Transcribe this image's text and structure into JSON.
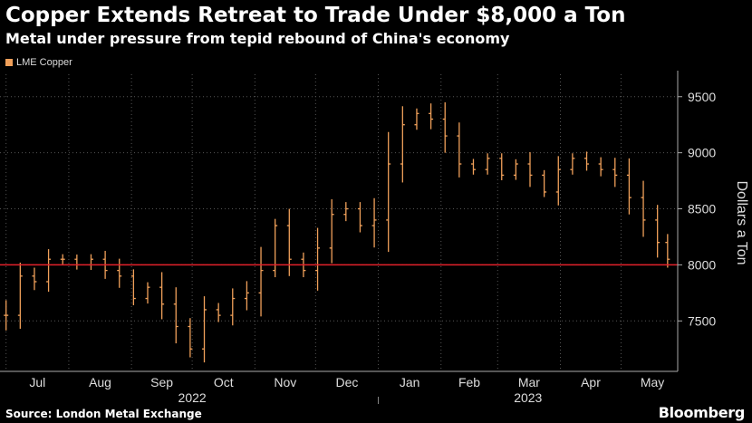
{
  "chart_data": {
    "type": "bar",
    "subtype": "ohlc",
    "title": "Copper Extends Retreat to Trade Under $8,000 a Ton",
    "subtitle": "Metal under pressure from tepid rebound of China's economy",
    "ylabel": "Dollars a Ton",
    "ylim": [
      7050,
      9700
    ],
    "yticks": [
      7500,
      8000,
      8500,
      9000,
      9500
    ],
    "reference_line": {
      "value": 8000,
      "color": "#e3212b"
    },
    "x_month_labels": [
      "Jul",
      "Aug",
      "Sep",
      "Oct",
      "Nov",
      "Dec",
      "Jan",
      "Feb",
      "Mar",
      "Apr",
      "May"
    ],
    "x_year_labels": [
      "2022",
      "2023"
    ],
    "grid": true,
    "legend_position": "top-left",
    "series": [
      {
        "name": "LME Copper",
        "color": "#f0a05a",
        "dates": [
          "2022-07-01",
          "2022-07-08",
          "2022-07-15",
          "2022-07-22",
          "2022-07-29",
          "2022-08-05",
          "2022-08-12",
          "2022-08-19",
          "2022-08-26",
          "2022-09-02",
          "2022-09-09",
          "2022-09-16",
          "2022-09-23",
          "2022-09-30",
          "2022-10-07",
          "2022-10-14",
          "2022-10-21",
          "2022-10-28",
          "2022-11-04",
          "2022-11-11",
          "2022-11-18",
          "2022-11-25",
          "2022-12-02",
          "2022-12-09",
          "2022-12-16",
          "2022-12-23",
          "2022-12-30",
          "2023-01-06",
          "2023-01-13",
          "2023-01-20",
          "2023-01-27",
          "2023-02-03",
          "2023-02-10",
          "2023-02-17",
          "2023-02-24",
          "2023-03-03",
          "2023-03-10",
          "2023-03-17",
          "2023-03-24",
          "2023-03-31",
          "2023-04-07",
          "2023-04-14",
          "2023-04-21",
          "2023-04-28",
          "2023-05-05",
          "2023-05-12",
          "2023-05-19",
          "2023-05-24"
        ],
        "values": [
          7550,
          7900,
          7850,
          8050,
          8050,
          8000,
          8050,
          7950,
          7900,
          7700,
          7800,
          7650,
          7450,
          7250,
          7600,
          7550,
          7700,
          7750,
          7950,
          8350,
          8050,
          7950,
          8150,
          8450,
          8500,
          8350,
          8400,
          8900,
          9250,
          9350,
          9300,
          9150,
          8900,
          8850,
          8950,
          8800,
          8900,
          8800,
          8650,
          8850,
          8950,
          8900,
          8850,
          8800,
          8600,
          8400,
          8200,
          8050
        ]
      }
    ]
  },
  "header": {
    "title": "Copper Extends Retreat to Trade Under $8,000 a Ton",
    "subtitle": "Metal under pressure from tepid rebound of China's economy"
  },
  "legend": {
    "label": "LME Copper"
  },
  "footer": {
    "source": "Source: London Metal Exchange",
    "brand": "Bloomberg"
  }
}
